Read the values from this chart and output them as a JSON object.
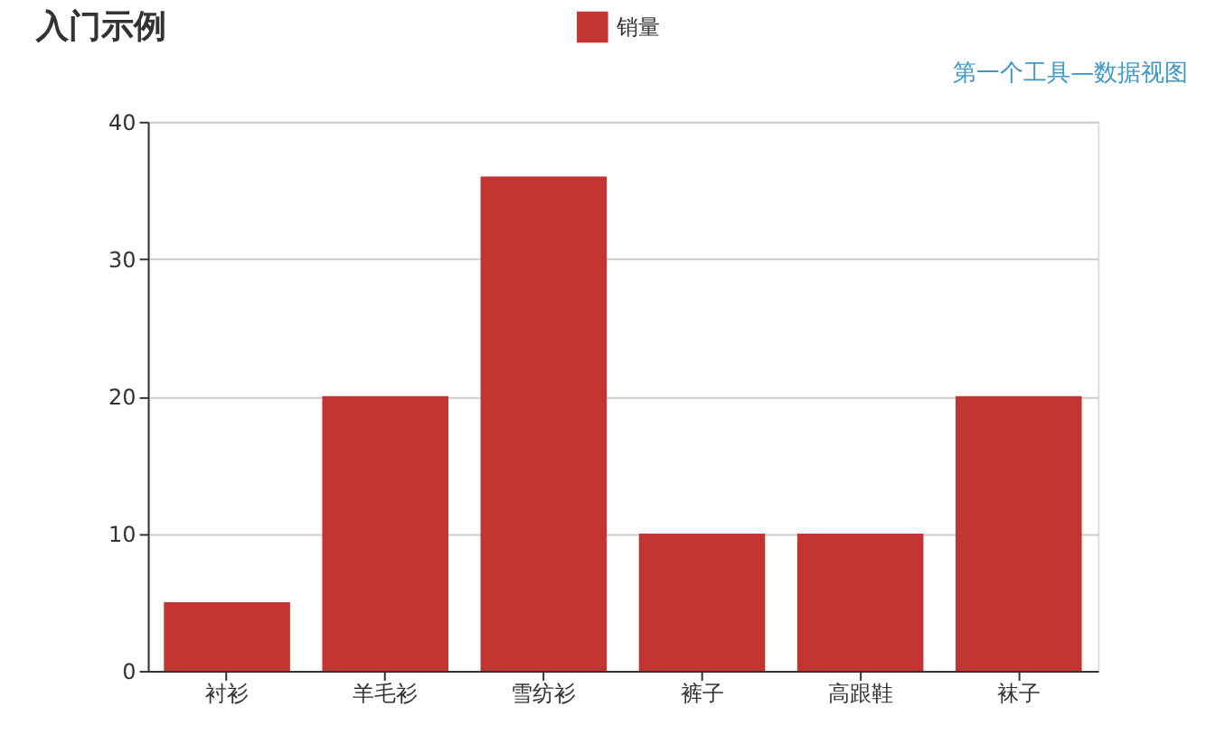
{
  "chart_data": {
    "type": "bar",
    "title": "入门示例",
    "categories": [
      "衬衫",
      "羊毛衫",
      "雪纺衫",
      "裤子",
      "高跟鞋",
      "袜子"
    ],
    "series": [
      {
        "name": "销量",
        "color": "#c23531",
        "values": [
          5,
          20,
          36,
          10,
          10,
          20
        ]
      }
    ],
    "ylim": [
      0,
      40
    ],
    "yticks": [
      0,
      10,
      20,
      30,
      40
    ],
    "grid": "y",
    "legend": "top",
    "annotations": [
      "第一个工具—数据视图"
    ]
  }
}
